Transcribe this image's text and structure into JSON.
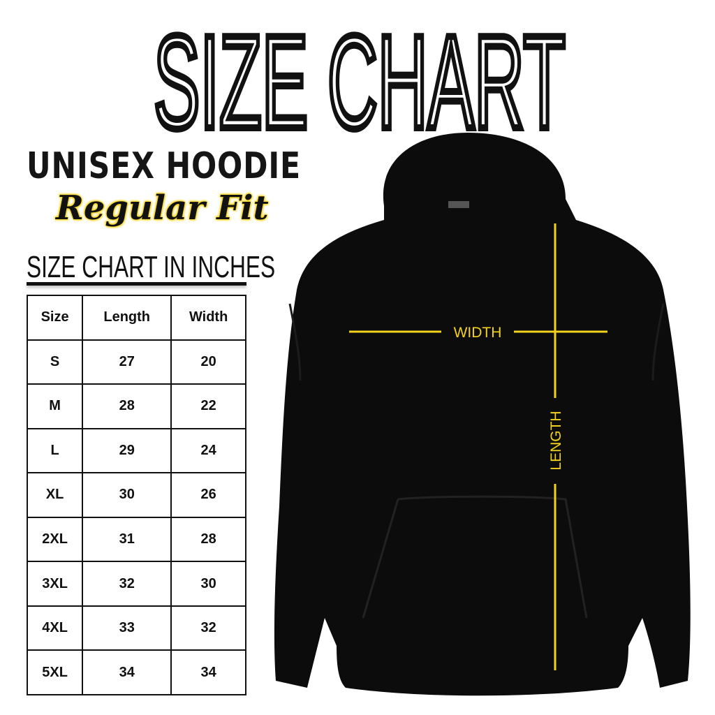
{
  "title": "SIZE CHART",
  "subtitle": "UNISEX HOODIE",
  "fit": "Regular Fit",
  "units_heading": "SIZE CHART IN INCHES",
  "table": {
    "headers": [
      "Size",
      "Length",
      "Width"
    ],
    "rows": [
      [
        "S",
        "27",
        "20"
      ],
      [
        "M",
        "28",
        "22"
      ],
      [
        "L",
        "29",
        "24"
      ],
      [
        "XL",
        "30",
        "26"
      ],
      [
        "2XL",
        "31",
        "28"
      ],
      [
        "3XL",
        "32",
        "30"
      ],
      [
        "4XL",
        "33",
        "32"
      ],
      [
        "5XL",
        "34",
        "34"
      ]
    ]
  },
  "diagram": {
    "width_label": "WIDTH",
    "length_label": "LENGTH",
    "line_color": "#f3d21b",
    "garment_color": "#0c0c0c"
  }
}
